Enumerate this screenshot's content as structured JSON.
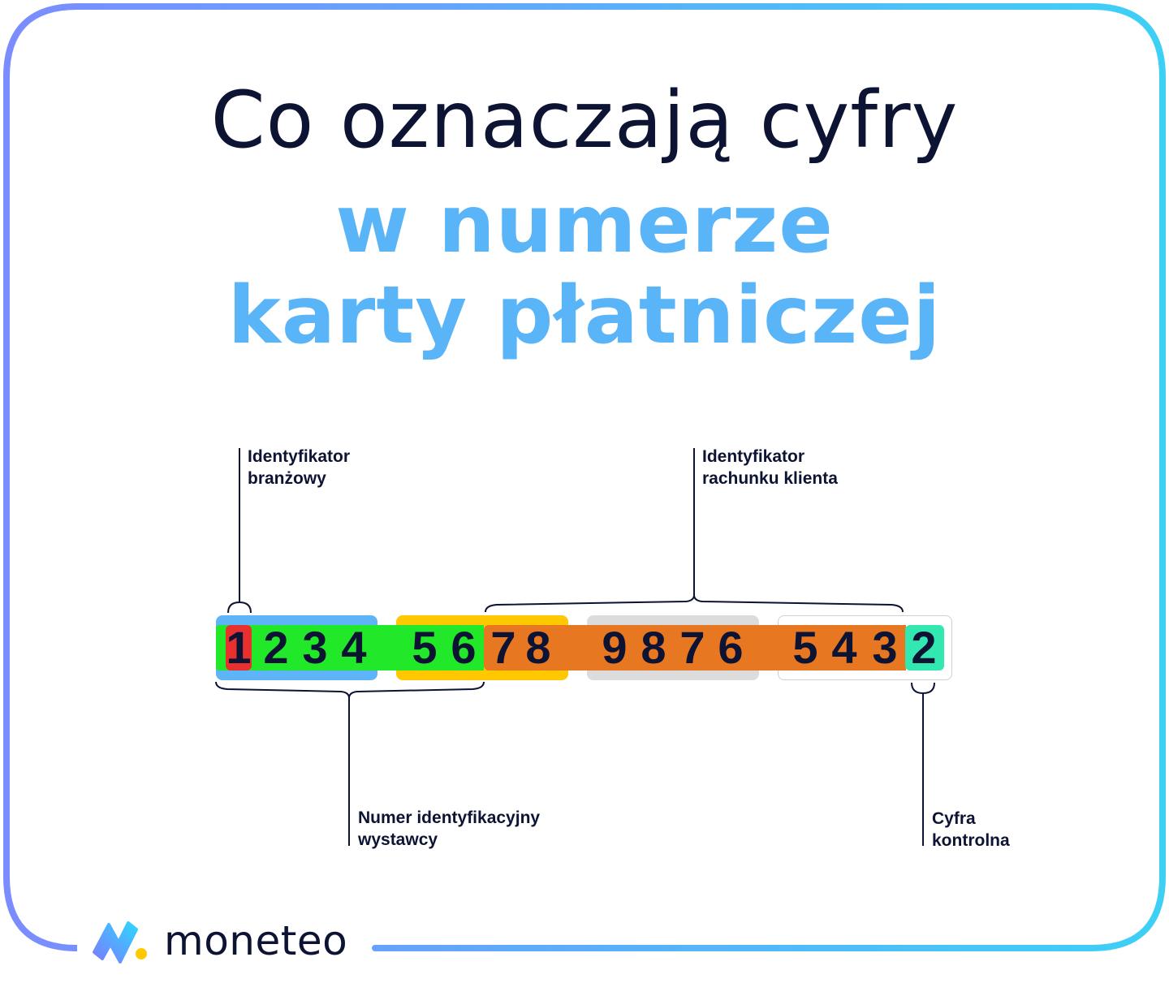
{
  "title": {
    "line1": "Co oznaczają cyfry",
    "line2": "w numerze",
    "line3": "karty płatniczej"
  },
  "labels": {
    "industry": [
      "Identyfikator",
      "branżowy"
    ],
    "account": [
      "Identyfikator",
      "rachunku klienta"
    ],
    "issuer": [
      "Numer identyfikacyjny",
      "wystawcy"
    ],
    "check": [
      "Cyfra",
      "kontrolna"
    ]
  },
  "card_number": {
    "digits": [
      "1",
      "2",
      "3",
      "4",
      "5",
      "6",
      "7",
      "8",
      "9",
      "8",
      "7",
      "6",
      "5",
      "4",
      "3",
      "2"
    ]
  },
  "brand": {
    "name": "moneteo"
  },
  "colors": {
    "text": "#0d1333",
    "accent": "#5ab4f8",
    "industry": "#e8302f",
    "issuer": "#22e82a",
    "account": "#e87722",
    "check": "#33e8b0",
    "group1": "#5db4f7",
    "group2": "#ffc800",
    "group3": "#dcdcdc",
    "border_start": "#7b8cff",
    "border_end": "#3dd0f5"
  }
}
